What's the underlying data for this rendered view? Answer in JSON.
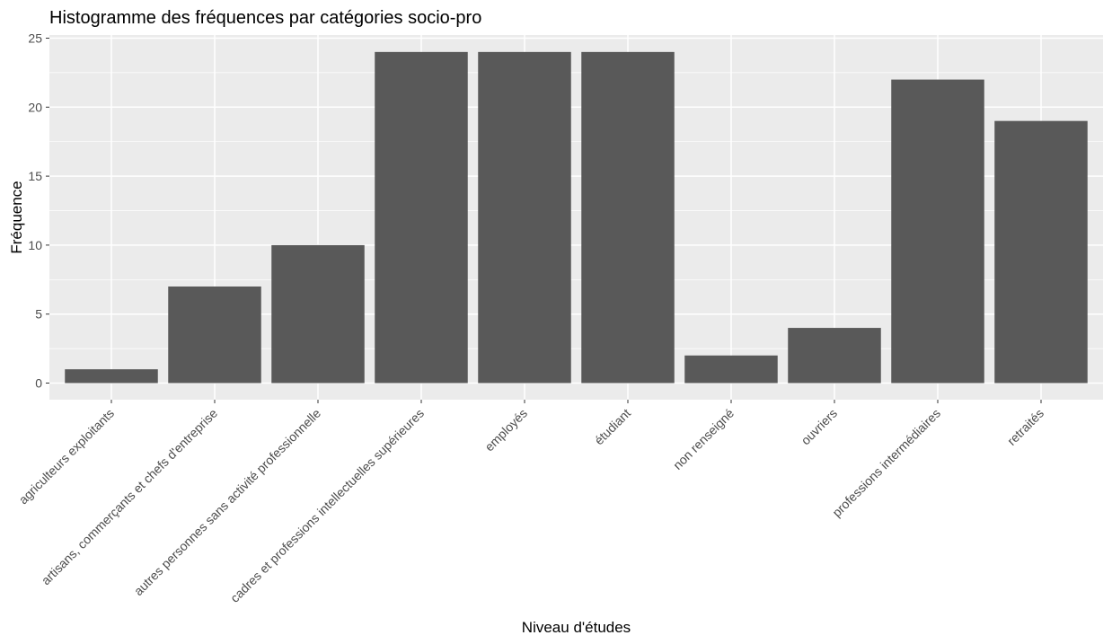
{
  "chart_data": {
    "type": "bar",
    "title": "Histogramme des fréquences par catégories socio-pro",
    "xlabel": "Niveau d'études",
    "ylabel": "Fréquence",
    "categories": [
      "agriculteurs exploitants",
      "artisans, commerçants et chefs d'entreprise",
      "autres personnes sans activité professionnelle",
      "cadres et professions intellectuelles supérieures",
      "employés",
      "étudiant",
      "non renseigné",
      "ouvriers",
      "professions intermédiaires",
      "retraités"
    ],
    "values": [
      1,
      7,
      10,
      24,
      24,
      24,
      2,
      4,
      22,
      19
    ],
    "ylim": [
      0,
      25
    ],
    "yticks": [
      "0",
      "5",
      "10",
      "15",
      "20",
      "25"
    ],
    "grid": true,
    "legend": "none",
    "colors": {
      "bar": "#595959",
      "panel": "#ebebeb",
      "grid": "#ffffff"
    }
  }
}
